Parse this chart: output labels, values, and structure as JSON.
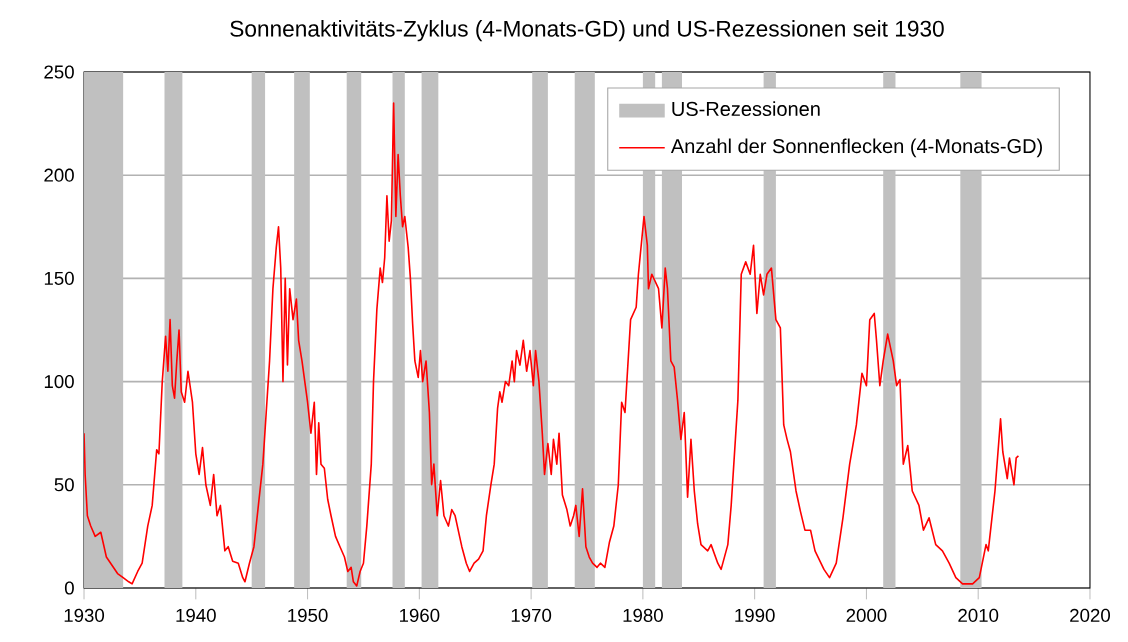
{
  "chart_data": {
    "type": "line",
    "title": "Sonnenaktivitäts-Zyklus (4-Monats-GD) und US-Rezessionen seit 1930",
    "xlim": [
      1930,
      2020
    ],
    "ylim": [
      0,
      250
    ],
    "xticks": [
      1930,
      1940,
      1950,
      1960,
      1970,
      1980,
      1990,
      2000,
      2010,
      2020
    ],
    "yticks": [
      0,
      50,
      100,
      150,
      200,
      250
    ],
    "grid": "y",
    "legend": "top right",
    "series": [
      {
        "name": "US-Rezessionen",
        "color": "#c0c0c0",
        "type": "area",
        "x": [
          1930.0,
          1933.5,
          1933.5,
          1937.2,
          1937.2,
          1938.8,
          1938.8,
          1945.0,
          1945.0,
          1946.2,
          1946.2,
          1948.8,
          1948.8,
          1950.2,
          1950.2,
          1953.5,
          1953.5,
          1954.8,
          1954.8,
          1957.6,
          1957.6,
          1958.7,
          1958.7,
          1960.2,
          1960.2,
          1961.7,
          1961.7,
          1970.1,
          1970.1,
          1971.5,
          1971.5,
          1973.9,
          1973.9,
          1975.7,
          1975.7,
          1980.0,
          1980.0,
          1981.1,
          1981.1,
          1981.7,
          1981.7,
          1983.5,
          1983.5,
          1990.8,
          1990.8,
          1991.9,
          1991.9,
          2001.5,
          2001.5,
          2002.6,
          2002.6,
          2008.4,
          2008.4,
          2010.3,
          2010.3
        ],
        "values": [
          250,
          250,
          0,
          0,
          250,
          250,
          0,
          0,
          250,
          250,
          0,
          0,
          250,
          250,
          0,
          0,
          250,
          250,
          0,
          0,
          250,
          250,
          0,
          0,
          250,
          250,
          0,
          0,
          250,
          250,
          0,
          0,
          250,
          250,
          0,
          0,
          250,
          250,
          0,
          0,
          250,
          250,
          0,
          0,
          250,
          250,
          0,
          0,
          250,
          250,
          0,
          0,
          250,
          250,
          0
        ]
      },
      {
        "name": "Anzahl der Sonnenflecken (4-Monats-GD)",
        "color": "#ff0000",
        "x": [
          1930.0,
          1930.1,
          1930.3,
          1930.6,
          1931.0,
          1931.5,
          1932.0,
          1932.5,
          1933.0,
          1933.5,
          1934.0,
          1934.3,
          1934.8,
          1935.2,
          1935.7,
          1936.1,
          1936.5,
          1936.7,
          1937.0,
          1937.3,
          1937.5,
          1937.7,
          1937.9,
          1938.1,
          1938.3,
          1938.5,
          1938.7,
          1939.0,
          1939.3,
          1939.7,
          1940.0,
          1940.3,
          1940.6,
          1940.9,
          1941.3,
          1941.6,
          1941.9,
          1942.2,
          1942.6,
          1942.9,
          1943.3,
          1943.8,
          1944.2,
          1944.4,
          1944.8,
          1945.2,
          1945.6,
          1946.0,
          1946.3,
          1946.6,
          1946.9,
          1947.2,
          1947.4,
          1947.6,
          1947.8,
          1948.0,
          1948.2,
          1948.4,
          1948.7,
          1949.0,
          1949.2,
          1949.5,
          1950.0,
          1950.3,
          1950.6,
          1950.8,
          1951.0,
          1951.2,
          1951.5,
          1951.8,
          1952.1,
          1952.5,
          1952.9,
          1953.3,
          1953.6,
          1953.9,
          1954.1,
          1954.4,
          1954.7,
          1955.0,
          1955.3,
          1955.7,
          1955.9,
          1956.2,
          1956.5,
          1956.7,
          1956.9,
          1957.1,
          1957.3,
          1957.5,
          1957.7,
          1957.9,
          1958.1,
          1958.3,
          1958.5,
          1958.7,
          1959.0,
          1959.2,
          1959.4,
          1959.6,
          1959.9,
          1960.1,
          1960.3,
          1960.6,
          1960.9,
          1961.1,
          1961.3,
          1961.6,
          1961.9,
          1962.2,
          1962.6,
          1962.9,
          1963.2,
          1963.6,
          1963.8,
          1964.2,
          1964.5,
          1964.9,
          1965.3,
          1965.7,
          1966.0,
          1966.4,
          1966.7,
          1967.0,
          1967.2,
          1967.4,
          1967.7,
          1968.0,
          1968.3,
          1968.5,
          1968.7,
          1969.0,
          1969.3,
          1969.6,
          1969.9,
          1970.2,
          1970.4,
          1970.7,
          1971.0,
          1971.2,
          1971.5,
          1971.8,
          1972.0,
          1972.3,
          1972.5,
          1972.8,
          1973.2,
          1973.5,
          1973.8,
          1974.0,
          1974.3,
          1974.6,
          1974.9,
          1975.2,
          1975.5,
          1975.9,
          1976.2,
          1976.6,
          1977.0,
          1977.4,
          1977.8,
          1978.1,
          1978.4,
          1978.9,
          1979.4,
          1979.6,
          1980.1,
          1980.4,
          1980.5,
          1980.8,
          1981.4,
          1981.7,
          1982.0,
          1982.2,
          1982.5,
          1982.8,
          1983.1,
          1983.4,
          1983.7,
          1984.0,
          1984.3,
          1984.6,
          1984.9,
          1985.2,
          1985.8,
          1986.1,
          1986.7,
          1987.0,
          1987.6,
          1987.9,
          1988.5,
          1988.8,
          1989.2,
          1989.6,
          1989.9,
          1990.2,
          1990.5,
          1990.8,
          1991.1,
          1991.5,
          1991.9,
          1992.3,
          1992.6,
          1992.9,
          1993.2,
          1993.7,
          1994.1,
          1994.5,
          1995.0,
          1995.4,
          1996.2,
          1996.7,
          1997.3,
          1997.9,
          1998.5,
          1999.1,
          1999.6,
          2000.0,
          2000.3,
          2000.7,
          2000.9,
          2001.2,
          2001.5,
          2001.9,
          2002.4,
          2002.7,
          2003.0,
          2003.3,
          2003.7,
          2004.1,
          2004.7,
          2005.1,
          2005.6,
          2006.2,
          2006.8,
          2007.4,
          2008.0,
          2008.6,
          2009.5,
          2010.1,
          2010.7,
          2010.9,
          2011.5,
          2012.0,
          2012.2,
          2012.6,
          2012.8,
          2013.2,
          2013.4,
          2013.6
        ],
        "values": [
          75,
          55,
          35,
          30,
          25,
          27,
          15,
          11,
          7,
          5,
          3,
          2,
          8,
          12,
          30,
          40,
          67,
          65,
          100,
          122,
          105,
          130,
          98,
          92,
          110,
          125,
          95,
          90,
          105,
          90,
          65,
          55,
          68,
          50,
          40,
          55,
          35,
          40,
          18,
          20,
          13,
          12,
          5,
          3,
          12,
          20,
          40,
          60,
          85,
          110,
          145,
          165,
          175,
          155,
          100,
          150,
          108,
          145,
          130,
          140,
          120,
          110,
          90,
          75,
          90,
          55,
          80,
          60,
          58,
          43,
          35,
          25,
          20,
          15,
          8,
          10,
          3,
          1,
          8,
          12,
          30,
          60,
          100,
          135,
          155,
          148,
          160,
          190,
          168,
          178,
          235,
          180,
          210,
          190,
          175,
          180,
          165,
          150,
          128,
          110,
          102,
          115,
          100,
          110,
          85,
          50,
          60,
          35,
          52,
          35,
          30,
          38,
          35,
          25,
          20,
          12,
          8,
          12,
          14,
          18,
          35,
          50,
          60,
          87,
          95,
          90,
          100,
          98,
          110,
          100,
          115,
          108,
          120,
          105,
          115,
          98,
          115,
          100,
          75,
          55,
          70,
          55,
          72,
          60,
          75,
          45,
          38,
          30,
          35,
          40,
          25,
          48,
          20,
          15,
          12,
          10,
          12,
          10,
          22,
          30,
          50,
          90,
          85,
          130,
          136,
          152,
          180,
          166,
          145,
          152,
          145,
          126,
          155,
          145,
          110,
          107,
          91,
          72,
          85,
          44,
          72,
          47,
          31,
          21,
          18,
          21,
          12,
          9,
          21,
          40,
          91,
          152,
          158,
          152,
          166,
          133,
          152,
          142,
          152,
          155,
          130,
          126,
          79,
          72,
          66,
          47,
          37,
          28,
          28,
          18,
          9,
          5,
          12,
          34,
          60,
          79,
          104,
          98,
          130,
          133,
          120,
          98,
          110,
          123,
          110,
          98,
          101,
          60,
          69,
          47,
          40,
          28,
          34,
          21,
          18,
          12,
          5,
          2,
          2,
          5,
          21,
          18,
          47,
          82,
          66,
          53,
          63,
          50,
          63,
          64
        ]
      }
    ]
  }
}
